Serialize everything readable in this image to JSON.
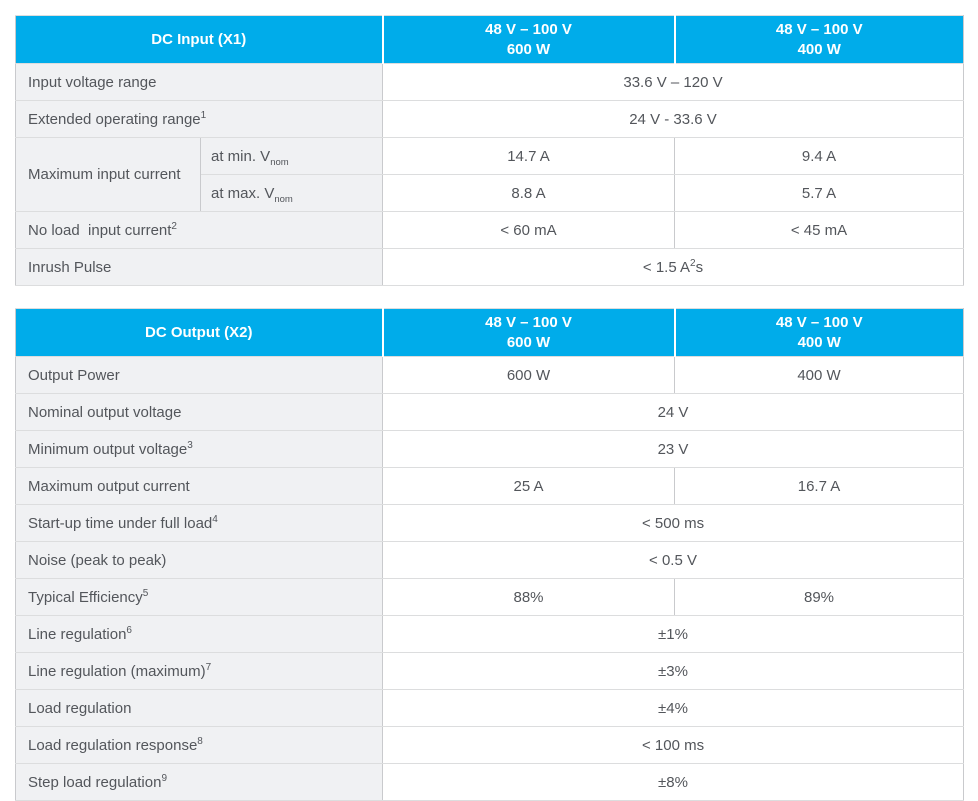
{
  "colors": {
    "accent": "#00ACEA",
    "label_bg": "#F0F1F3",
    "value_bg": "#FFFFFF",
    "horizontal_border": "#DCDDDE",
    "vertical_border": "#C9CACD",
    "header_bottom_border": "#A9A9AB",
    "text": "#53565B",
    "header_text": "#FFFFFF"
  },
  "tables": [
    {
      "title": "DC Input (X1)",
      "column_headers": [
        {
          "line1": "48 V – 100 V",
          "line2": "600 W"
        },
        {
          "line1": "48 V – 100 V",
          "line2": "400 W"
        }
      ],
      "rows": [
        {
          "label": "Input voltage range",
          "cells": [
            {
              "text": "33.6 V – 120 V",
              "colspan": 2
            }
          ]
        },
        {
          "label": "Extended operating range",
          "label_sup": "1",
          "cells": [
            {
              "text": "24 V - 33.6 V",
              "colspan": 2
            }
          ]
        },
        {
          "label": "Maximum input current",
          "label_rowspan": 2,
          "sublabel": {
            "text": "at min. V",
            "sub": "nom"
          },
          "cells": [
            {
              "text": "14.7 A"
            },
            {
              "text": "9.4 A"
            }
          ]
        },
        {
          "sublabel": {
            "text": "at max. V",
            "sub": "nom"
          },
          "cells": [
            {
              "text": "8.8 A"
            },
            {
              "text": "5.7 A"
            }
          ]
        },
        {
          "label": "No load  input current",
          "label_sup": "2",
          "cells": [
            {
              "text": "< 60 mA"
            },
            {
              "text": "< 45 mA"
            }
          ]
        },
        {
          "label": "Inrush Pulse",
          "cells": [
            {
              "text": "< 1.5 A",
              "sup": "2",
              "tail": "s",
              "colspan": 2
            }
          ]
        }
      ]
    },
    {
      "title": "DC Output (X2)",
      "column_headers": [
        {
          "line1": "48 V – 100 V",
          "line2": "600 W"
        },
        {
          "line1": "48 V – 100 V",
          "line2": "400 W"
        }
      ],
      "rows": [
        {
          "label": "Output Power",
          "cells": [
            {
              "text": "600 W"
            },
            {
              "text": "400 W"
            }
          ]
        },
        {
          "label": "Nominal output voltage",
          "cells": [
            {
              "text": "24 V",
              "colspan": 2
            }
          ]
        },
        {
          "label": "Minimum output voltage",
          "label_sup": "3",
          "cells": [
            {
              "text": "23 V",
              "colspan": 2
            }
          ]
        },
        {
          "label": "Maximum output current",
          "cells": [
            {
              "text": "25 A"
            },
            {
              "text": "16.7 A"
            }
          ]
        },
        {
          "label": "Start-up time under full load",
          "label_sup": "4",
          "cells": [
            {
              "text": "< 500 ms",
              "colspan": 2
            }
          ]
        },
        {
          "label": "Noise (peak to peak)",
          "cells": [
            {
              "text": "< 0.5 V",
              "colspan": 2
            }
          ]
        },
        {
          "label": "Typical Efficiency",
          "label_sup": "5",
          "cells": [
            {
              "text": "88%"
            },
            {
              "text": "89%"
            }
          ]
        },
        {
          "label": "Line regulation",
          "label_sup": "6",
          "cells": [
            {
              "text": "±1%",
              "colspan": 2
            }
          ]
        },
        {
          "label": "Line regulation (maximum)",
          "label_sup": "7",
          "cells": [
            {
              "text": "±3%",
              "colspan": 2
            }
          ]
        },
        {
          "label": "Load regulation",
          "cells": [
            {
              "text": "±4%",
              "colspan": 2
            }
          ]
        },
        {
          "label": "Load regulation response",
          "label_sup": "8",
          "cells": [
            {
              "text": "< 100 ms",
              "colspan": 2
            }
          ]
        },
        {
          "label": "Step load regulation",
          "label_sup": "9",
          "cells": [
            {
              "text": "±8%",
              "colspan": 2
            }
          ]
        }
      ]
    }
  ]
}
